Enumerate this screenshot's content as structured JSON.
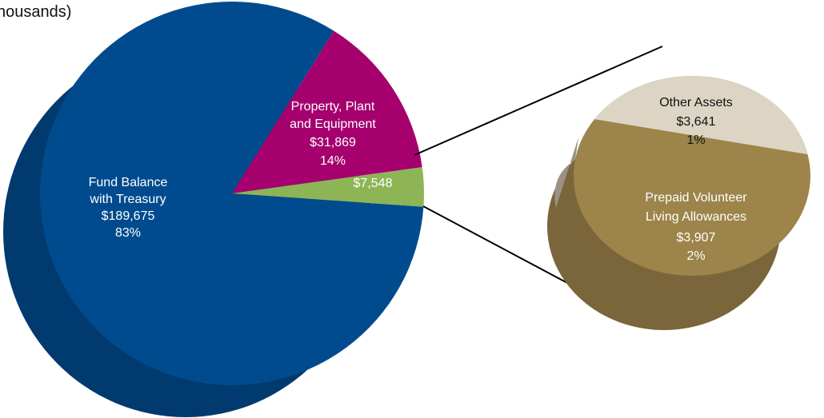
{
  "header": {
    "caption": "housands)"
  },
  "colors": {
    "fund_balance": "#004B8D",
    "fund_balance_side": "#003A6E",
    "ppe": "#A5006E",
    "other_group": "#8DB556",
    "other_assets": "#DDD5C4",
    "other_assets_side": "#9A9184",
    "prepaid": "#9C844A",
    "prepaid_side": "#7A663A",
    "leader_lines": "#000000"
  },
  "chart_data": [
    {
      "type": "pie",
      "unit": "thousands of dollars",
      "slices": [
        {
          "label": "Fund Balance with Treasury",
          "value_text": "$189,675",
          "percent_text": "83%",
          "value": 189675,
          "percent": 83
        },
        {
          "label": "Property, Plant and Equipment",
          "value_text": "$31,869",
          "percent_text": "14%",
          "value": 31869,
          "percent": 14
        },
        {
          "label": "",
          "value_text": "$7,548",
          "percent_text": "",
          "value": 7548,
          "percent": 3
        }
      ]
    },
    {
      "type": "pie",
      "unit": "thousands of dollars",
      "slices": [
        {
          "label": "Other Assets",
          "value_text": "$3,641",
          "percent_text": "1%",
          "value": 3641,
          "percent": 1
        },
        {
          "label": "Prepaid Volunteer Living Allowances",
          "value_text": "$3,907",
          "percent_text": "2%",
          "value": 3907,
          "percent": 2
        }
      ]
    }
  ]
}
